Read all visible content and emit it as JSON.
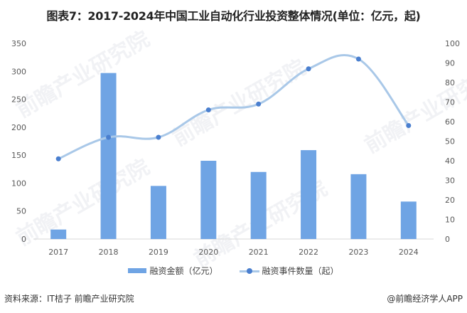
{
  "title": "图表7：2017-2024年中国工业自动化行业投资整体情况(单位：亿元，起)",
  "chart_data": {
    "type": "bar+line",
    "title": "图表7：2017-2024年中国工业自动化行业投资整体情况(单位：亿元，起)",
    "categories": [
      "2017",
      "2018",
      "2019",
      "2020",
      "2021",
      "2022",
      "2023",
      "2024"
    ],
    "series": [
      {
        "name": "融资金额（亿元）",
        "type": "bar",
        "axis": "left",
        "values": [
          17,
          297,
          95,
          140,
          120,
          159,
          116,
          67
        ],
        "color": "#6FA4E4"
      },
      {
        "name": "融资事件数量（起）",
        "type": "line",
        "axis": "right",
        "values": [
          41,
          52,
          52,
          66,
          69,
          87,
          92,
          58
        ],
        "color": "#A9C8E8",
        "marker_color": "#4A7FCF"
      }
    ],
    "left_axis": {
      "ylim": [
        0,
        350
      ],
      "ticks": [
        "0",
        "50",
        "100",
        "150",
        "200",
        "250",
        "300",
        "350"
      ]
    },
    "right_axis": {
      "ylim": [
        0,
        100
      ],
      "ticks": [
        "0",
        "10",
        "20",
        "30",
        "40",
        "50",
        "60",
        "70",
        "80",
        "90",
        "100"
      ]
    },
    "xlabel": "",
    "ylabel": "",
    "grid": false,
    "legend_position": "bottom"
  },
  "legend": {
    "bar_label": "融资金额（亿元）",
    "line_label": "融资事件数量（起）"
  },
  "footer": {
    "source": "资料来源：IT桔子 前瞻产业研究院",
    "brand": "@前瞻经济学人APP"
  },
  "watermark": "前瞻产业研究院"
}
